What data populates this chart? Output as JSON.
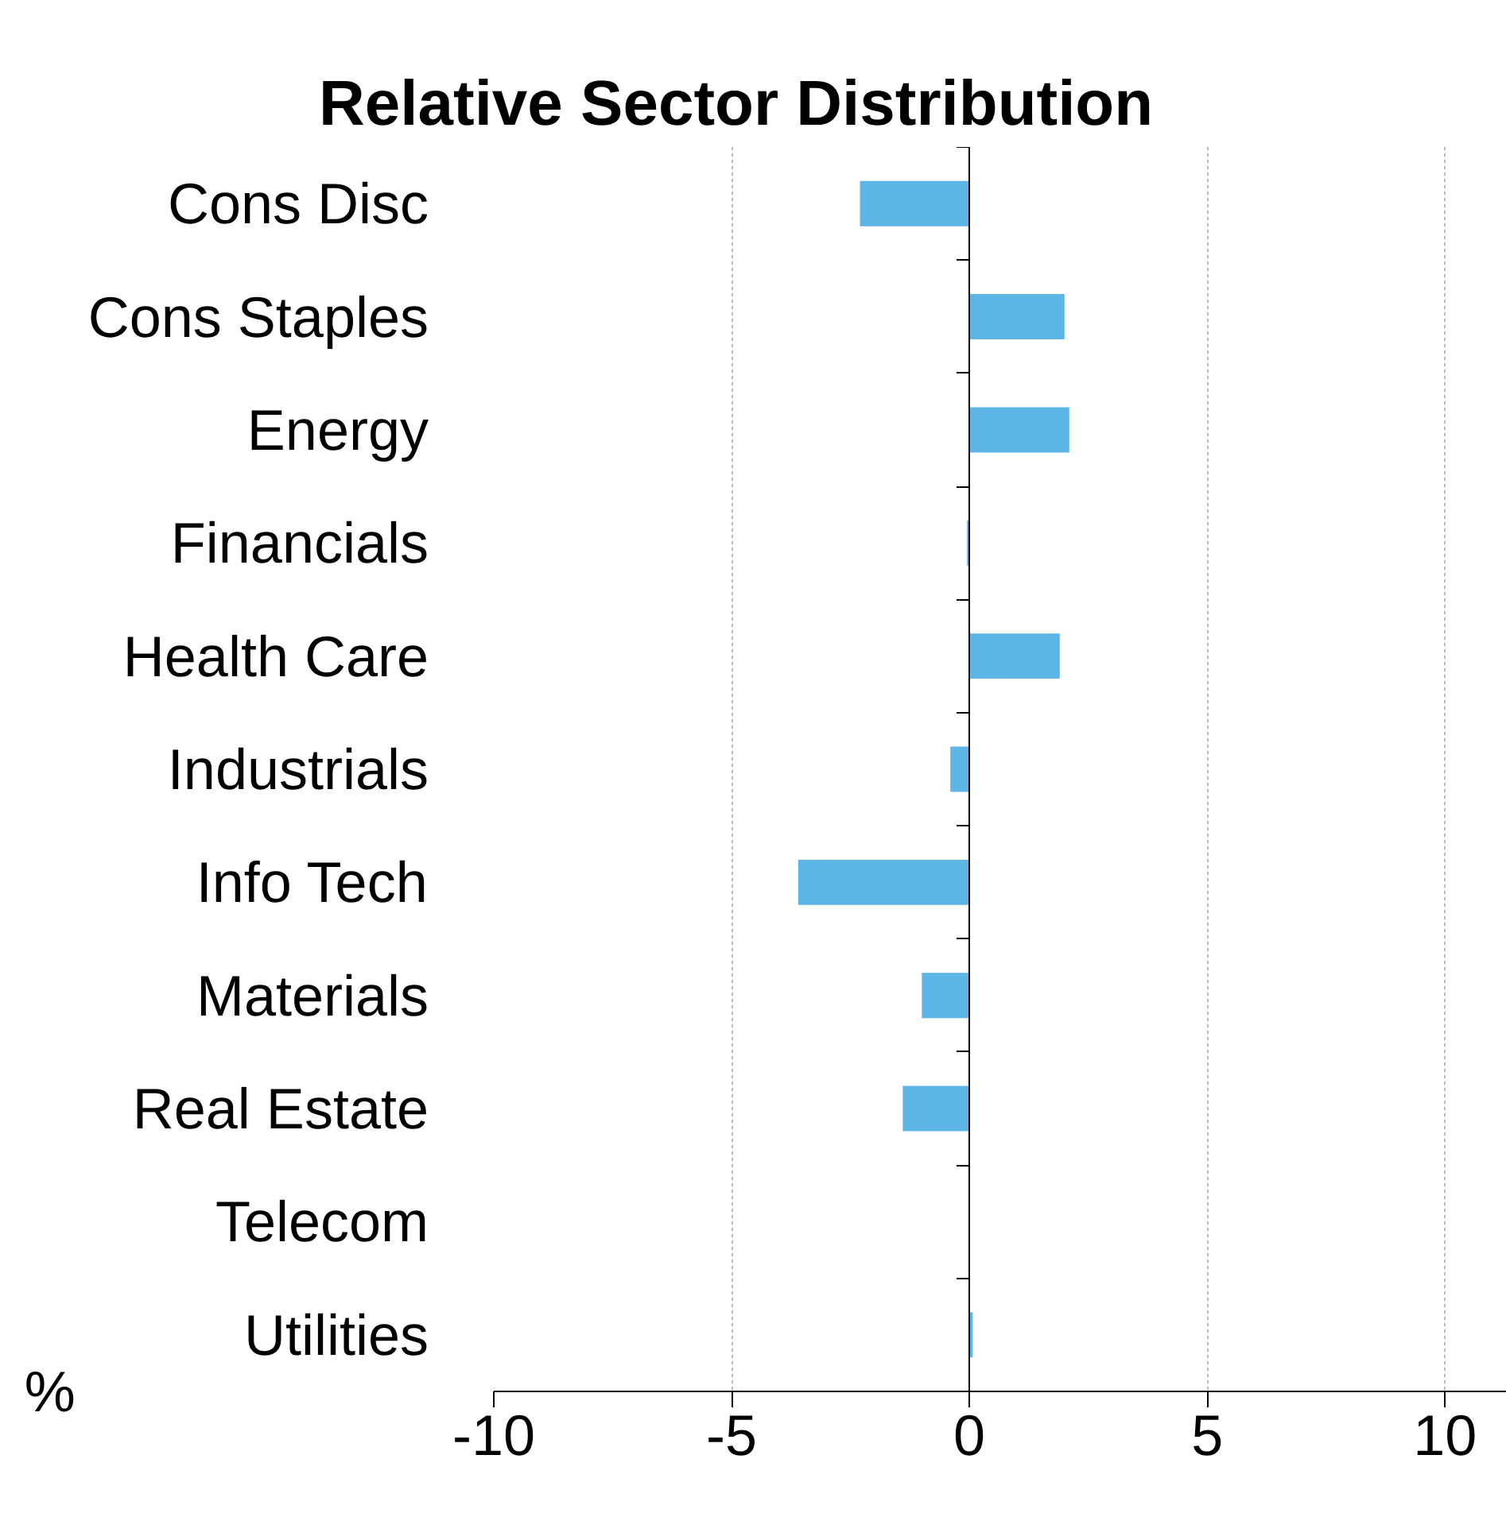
{
  "chart_data": {
    "type": "bar",
    "orientation": "horizontal",
    "title": "Relative Sector Distribution",
    "xlabel": "%",
    "categories": [
      "Cons Disc",
      "Cons Staples",
      "Energy",
      "Financials",
      "Health Care",
      "Industrials",
      "Info Tech",
      "Materials",
      "Real Estate",
      "Telecom",
      "Utilities"
    ],
    "values": [
      -2.3,
      2.0,
      2.1,
      -0.05,
      1.9,
      -0.4,
      -3.6,
      -1.0,
      -1.4,
      null,
      0.07
    ],
    "color": "#5db5e5",
    "xlim": [
      -10,
      11.3
    ],
    "xticks": [
      -10,
      -5,
      0,
      5,
      10
    ],
    "grid": "x"
  }
}
